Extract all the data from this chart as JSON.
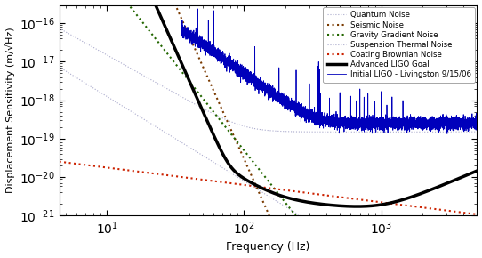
{
  "title": "",
  "xlabel": "Frequency (Hz)",
  "ylabel": "Displacement Sensitivity (m/√Hz)",
  "xlim": [
    4.5,
    5000
  ],
  "ylim": [
    1e-21,
    3e-16
  ],
  "legend_entries": [
    "Quantum Noise",
    "Seismic Noise",
    "Gravity Gradient Noise",
    "Suspension Thermal Noise",
    "Coating Brownian Noise",
    "Advanced LIGO Goal",
    "Initial LIGO - Livingston 9/15/06"
  ],
  "colors": {
    "quantum": "#aaaacc",
    "seismic": "#7a3a00",
    "gravity": "#226600",
    "suspension": "#aaaacc",
    "coating": "#cc2200",
    "aligo": "#000000",
    "iligo": "#0000bb"
  }
}
